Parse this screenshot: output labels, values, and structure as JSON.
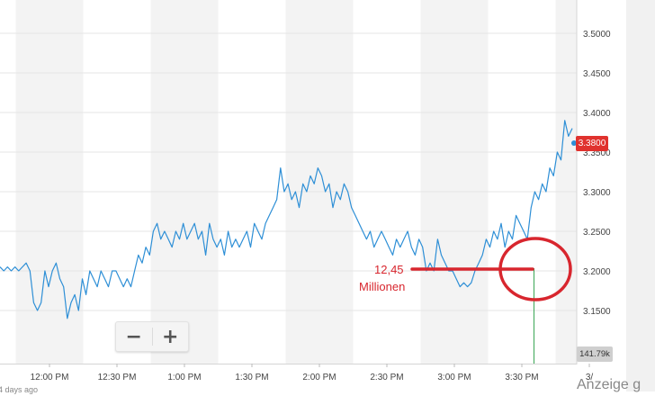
{
  "chart_data": {
    "type": "line",
    "y_ticks": [
      "3.5000",
      "3.4500",
      "3.4000",
      "3.3500",
      "3.3000",
      "3.2500",
      "3.2000",
      "3.1500"
    ],
    "x_ticks": [
      "12:00 PM",
      "12:30 PM",
      "1:00 PM",
      "1:30 PM",
      "2:00 PM",
      "2:30 PM",
      "3:00 PM",
      "3:30 PM",
      "3/"
    ],
    "ylim": [
      3.13,
      3.52
    ],
    "current_price": "3.3800",
    "volume_label": "141.79k",
    "series": [
      {
        "color": "#2e8fd6",
        "values": [
          3.205,
          3.2,
          3.205,
          3.2,
          3.205,
          3.2,
          3.205,
          3.21,
          3.2,
          3.16,
          3.15,
          3.16,
          3.2,
          3.18,
          3.2,
          3.21,
          3.19,
          3.18,
          3.14,
          3.16,
          3.17,
          3.15,
          3.19,
          3.17,
          3.2,
          3.19,
          3.18,
          3.2,
          3.19,
          3.18,
          3.2,
          3.2,
          3.19,
          3.18,
          3.19,
          3.18,
          3.2,
          3.22,
          3.21,
          3.23,
          3.22,
          3.25,
          3.26,
          3.24,
          3.25,
          3.24,
          3.23,
          3.25,
          3.24,
          3.26,
          3.24,
          3.25,
          3.26,
          3.24,
          3.25,
          3.22,
          3.26,
          3.24,
          3.23,
          3.24,
          3.22,
          3.25,
          3.23,
          3.24,
          3.23,
          3.24,
          3.25,
          3.23,
          3.26,
          3.25,
          3.24,
          3.26,
          3.27,
          3.28,
          3.29,
          3.33,
          3.3,
          3.31,
          3.29,
          3.3,
          3.28,
          3.31,
          3.3,
          3.32,
          3.31,
          3.33,
          3.32,
          3.3,
          3.31,
          3.28,
          3.3,
          3.29,
          3.31,
          3.3,
          3.28,
          3.27,
          3.26,
          3.25,
          3.24,
          3.25,
          3.23,
          3.24,
          3.25,
          3.24,
          3.23,
          3.22,
          3.24,
          3.23,
          3.24,
          3.25,
          3.23,
          3.22,
          3.24,
          3.23,
          3.2,
          3.21,
          3.2,
          3.24,
          3.22,
          3.21,
          3.2,
          3.2,
          3.19,
          3.18,
          3.185,
          3.18,
          3.185,
          3.2,
          3.21,
          3.22,
          3.24,
          3.23,
          3.25,
          3.24,
          3.26,
          3.23,
          3.25,
          3.24,
          3.27,
          3.26,
          3.25,
          3.24,
          3.28,
          3.3,
          3.29,
          3.31,
          3.3,
          3.33,
          3.32,
          3.35,
          3.34,
          3.39,
          3.37,
          3.38
        ]
      }
    ]
  },
  "annotation": {
    "value": "12,45",
    "unit": "Millionen"
  },
  "toolbar": {
    "zoom_out": "−",
    "zoom_in": "+"
  },
  "footer": {
    "ago": "4 days ago",
    "ad_label": "Anzeige g"
  }
}
